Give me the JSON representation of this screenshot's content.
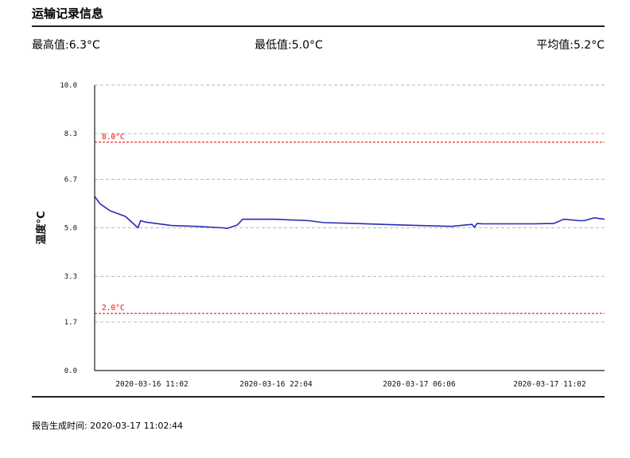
{
  "header": {
    "title": "运输记录信息"
  },
  "stats": {
    "max": "最高值:6.3°C",
    "min": "最低值:5.0°C",
    "avg": "平均值:5.2°C"
  },
  "footer": {
    "report_time": "报告生成时间: 2020-03-17 11:02:44"
  },
  "colors": {
    "series": "#2a2ab8",
    "limit": "#e01b1b",
    "grid": "#b8b8b8"
  },
  "chart_data": {
    "type": "line",
    "ylabel": "温度°C",
    "ylim": [
      0,
      10
    ],
    "y_ticks": [
      "10.0",
      "8.3",
      "6.7",
      "5.0",
      "3.3",
      "1.7",
      "0.0"
    ],
    "x_tick_labels": [
      "2020-03-16 11:02",
      "2020-03-16 22:04",
      "2020-03-17 06:06",
      "2020-03-17 11:02"
    ],
    "limits": [
      {
        "value": 8.0,
        "label": "8.0°C"
      },
      {
        "value": 2.0,
        "label": "2.0°C"
      }
    ],
    "grid": true,
    "series": [
      {
        "t": [
          0,
          0.01,
          0.03,
          0.06,
          0.085,
          0.09,
          0.1,
          0.15,
          0.2,
          0.25,
          0.26,
          0.28,
          0.29,
          0.35,
          0.42,
          0.45,
          0.5,
          0.6,
          0.7,
          0.74,
          0.745,
          0.75,
          0.76,
          0.86,
          0.9,
          0.92,
          0.95,
          0.96,
          0.98,
          1.0
        ],
        "values": [
          6.1,
          5.85,
          5.6,
          5.4,
          5.0,
          5.25,
          5.2,
          5.08,
          5.05,
          5.0,
          4.98,
          5.1,
          5.3,
          5.3,
          5.25,
          5.18,
          5.16,
          5.1,
          5.05,
          5.12,
          5.02,
          5.15,
          5.14,
          5.14,
          5.15,
          5.3,
          5.25,
          5.25,
          5.35,
          5.3
        ]
      }
    ]
  }
}
